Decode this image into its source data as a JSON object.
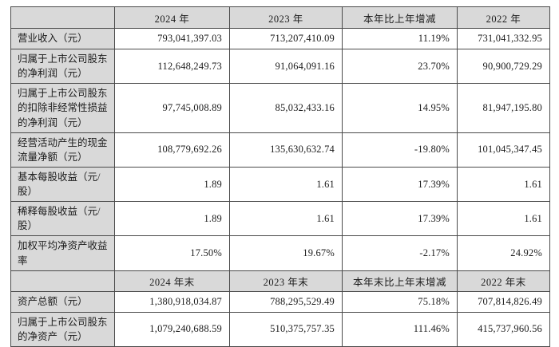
{
  "colors": {
    "header_bg": "#d9d9d9",
    "label_bg": "#d9d9d9",
    "border": "#4a4a4a",
    "text": "#1c1c1c",
    "cell_bg": "#ffffff"
  },
  "table": {
    "sections": [
      {
        "header": [
          "",
          "2024 年",
          "2023 年",
          "本年比上年增减",
          "2022 年"
        ],
        "rows": [
          {
            "label": "营业收入（元）",
            "values": [
              "793,041,397.03",
              "713,207,410.09",
              "11.19%",
              "731,041,332.95"
            ]
          },
          {
            "label": "归属于上市公司股东的净利润（元）",
            "values": [
              "112,648,249.73",
              "91,064,091.16",
              "23.70%",
              "90,900,729.29"
            ]
          },
          {
            "label": "归属于上市公司股东的扣除非经常性损益的净利润（元）",
            "values": [
              "97,745,008.89",
              "85,032,433.16",
              "14.95%",
              "81,947,195.80"
            ]
          },
          {
            "label": "经营活动产生的现金流量净额（元）",
            "values": [
              "108,779,692.26",
              "135,630,632.74",
              "-19.80%",
              "101,045,347.45"
            ]
          },
          {
            "label": "基本每股收益（元/股）",
            "values": [
              "1.89",
              "1.61",
              "17.39%",
              "1.61"
            ]
          },
          {
            "label": "稀释每股收益（元/股）",
            "values": [
              "1.89",
              "1.61",
              "17.39%",
              "1.61"
            ]
          },
          {
            "label": "加权平均净资产收益率",
            "values": [
              "17.50%",
              "19.67%",
              "-2.17%",
              "24.92%"
            ]
          }
        ]
      },
      {
        "header": [
          "",
          "2024 年末",
          "2023 年末",
          "本年末比上年末增减",
          "2022 年末"
        ],
        "rows": [
          {
            "label": "资产总额（元）",
            "values": [
              "1,380,918,034.87",
              "788,295,529.49",
              "75.18%",
              "707,814,826.49"
            ]
          },
          {
            "label": "归属于上市公司股东的净资产（元）",
            "values": [
              "1,079,240,688.59",
              "510,375,757.35",
              "111.46%",
              "415,737,960.56"
            ]
          }
        ]
      }
    ]
  }
}
